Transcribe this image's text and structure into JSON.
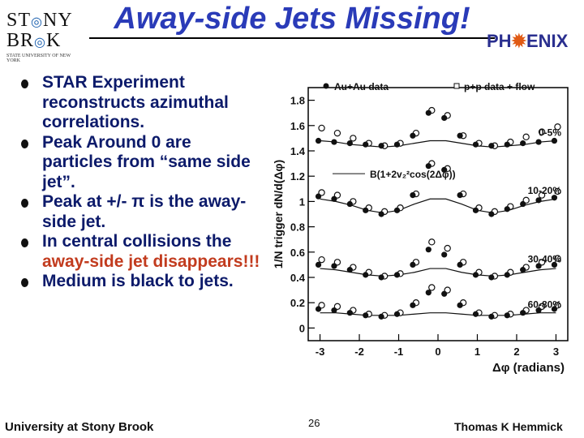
{
  "slide": {
    "title": "Away-side Jets Missing!",
    "logos": {
      "stony_brook": {
        "line1": "ST",
        "line1b": "NY",
        "line2": "BR",
        "line2b": "K",
        "sub": "STATE UNIVERSITY OF NEW YORK"
      },
      "phenix": {
        "pre": "PH",
        "post": "ENIX",
        "accent_color": "#e05a14"
      }
    },
    "bullets": [
      {
        "text": "STAR Experiment reconstructs azimuthal correlations."
      },
      {
        "text": "Peak Around 0 are particles from “same side jet”."
      },
      {
        "text": "Peak at +/- π is the away-side jet."
      },
      {
        "pre": "In central collisions the ",
        "highlight": "away-side jet disappears!!!",
        "post": ""
      },
      {
        "text": "Medium is black to jets."
      }
    ],
    "footer": {
      "left": "University at Stony Brook",
      "page": "26",
      "right": "Thomas K Hemmick"
    },
    "colors": {
      "title": "#2a3bb8",
      "text": "#0c1a6a",
      "highlight": "#c23b1e"
    }
  },
  "chart_data": {
    "type": "scatter",
    "xlabel": "Δφ (radians)",
    "ylabel": "1/N trigger dN/d(Δφ)",
    "xlim": [
      -3.3,
      3.3
    ],
    "ylim": [
      -0.1,
      1.9
    ],
    "xticks": [
      "-3",
      "-2",
      "-1",
      "0",
      "1",
      "2",
      "3"
    ],
    "yticks": [
      "0",
      "0.2",
      "0.4",
      "0.6",
      "0.8",
      "1",
      "1.2",
      "1.4",
      "1.6",
      "1.8"
    ],
    "legend": {
      "auau": "Au+Au data",
      "pp": "p+p data + flow",
      "fit": "B(1+2v₂²cos(2Δφ))"
    },
    "x": [
      -3.0,
      -2.6,
      -2.2,
      -1.8,
      -1.4,
      -1.0,
      -0.6,
      -0.2,
      0.2,
      0.6,
      1.0,
      1.4,
      1.8,
      2.2,
      2.6,
      3.0
    ],
    "panels": [
      {
        "label": "0-5%",
        "auau": [
          1.48,
          1.47,
          1.46,
          1.45,
          1.44,
          1.45,
          1.52,
          1.7,
          1.66,
          1.52,
          1.45,
          1.44,
          1.45,
          1.46,
          1.47,
          1.48
        ],
        "pp": [
          1.58,
          1.54,
          1.5,
          1.46,
          1.44,
          1.46,
          1.54,
          1.72,
          1.68,
          1.52,
          1.46,
          1.44,
          1.47,
          1.51,
          1.55,
          1.59
        ],
        "fit": [
          1.48,
          1.47,
          1.45,
          1.44,
          1.43,
          1.44,
          1.46,
          1.48,
          1.48,
          1.46,
          1.44,
          1.43,
          1.44,
          1.45,
          1.47,
          1.48
        ]
      },
      {
        "label": "10-20%",
        "auau": [
          1.04,
          1.02,
          0.98,
          0.93,
          0.9,
          0.93,
          1.05,
          1.28,
          1.25,
          1.05,
          0.93,
          0.9,
          0.94,
          0.98,
          1.01,
          1.03
        ],
        "pp": [
          1.07,
          1.05,
          1.0,
          0.95,
          0.92,
          0.95,
          1.06,
          1.3,
          1.26,
          1.06,
          0.95,
          0.92,
          0.96,
          1.01,
          1.05,
          1.08
        ],
        "fit": [
          1.02,
          1.0,
          0.97,
          0.93,
          0.91,
          0.93,
          0.98,
          1.02,
          1.02,
          0.98,
          0.93,
          0.91,
          0.93,
          0.97,
          1.0,
          1.02
        ]
      },
      {
        "label": "30-40%",
        "auau": [
          0.5,
          0.49,
          0.46,
          0.42,
          0.4,
          0.42,
          0.5,
          0.62,
          0.58,
          0.5,
          0.42,
          0.4,
          0.42,
          0.46,
          0.49,
          0.5
        ],
        "pp": [
          0.54,
          0.52,
          0.48,
          0.44,
          0.41,
          0.43,
          0.52,
          0.68,
          0.63,
          0.52,
          0.44,
          0.41,
          0.44,
          0.48,
          0.52,
          0.55
        ],
        "fit": [
          0.47,
          0.46,
          0.44,
          0.42,
          0.41,
          0.42,
          0.44,
          0.47,
          0.47,
          0.44,
          0.42,
          0.41,
          0.42,
          0.44,
          0.46,
          0.47
        ]
      },
      {
        "label": "60-80%",
        "auau": [
          0.15,
          0.14,
          0.12,
          0.1,
          0.09,
          0.11,
          0.18,
          0.28,
          0.27,
          0.18,
          0.11,
          0.09,
          0.1,
          0.12,
          0.14,
          0.15
        ],
        "pp": [
          0.18,
          0.17,
          0.14,
          0.11,
          0.1,
          0.12,
          0.2,
          0.32,
          0.3,
          0.2,
          0.12,
          0.1,
          0.11,
          0.14,
          0.17,
          0.18
        ],
        "fit": [
          0.12,
          0.12,
          0.11,
          0.1,
          0.1,
          0.1,
          0.11,
          0.12,
          0.12,
          0.11,
          0.1,
          0.1,
          0.1,
          0.11,
          0.12,
          0.12
        ]
      }
    ]
  }
}
